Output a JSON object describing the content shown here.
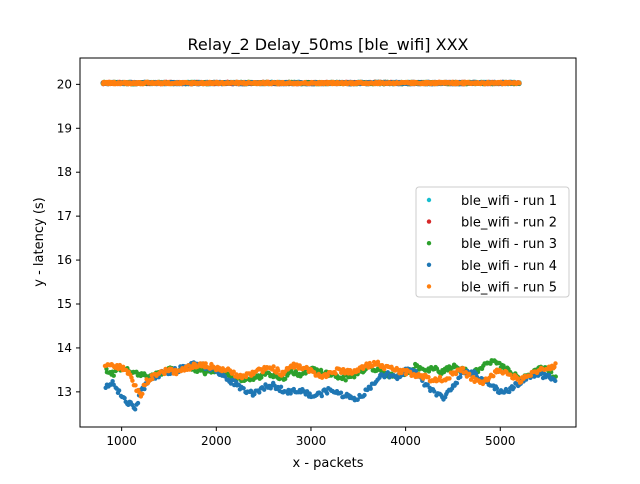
{
  "chart_data": {
    "type": "scatter",
    "title": "Relay_2 Delay_50ms [ble_wifi] XXX",
    "xlabel": "x - packets",
    "ylabel": "y - latency (s)",
    "xlim": [
      560,
      5800
    ],
    "ylim": [
      12.2,
      20.6
    ],
    "xticks": [
      1000,
      2000,
      3000,
      4000,
      5000
    ],
    "yticks": [
      13,
      14,
      15,
      16,
      17,
      18,
      19,
      20
    ],
    "grid": false,
    "legend_position": "center-right",
    "series": [
      {
        "name": "ble_wifi - run 1",
        "color": "#17becf",
        "x": [
          800,
          1200,
          1600,
          2000,
          2400,
          2800,
          3200,
          3600,
          4000,
          4400,
          4800,
          5200
        ],
        "y": [
          20.02,
          20.03,
          20.02,
          20.04,
          20.02,
          20.03,
          20.02,
          20.03,
          20.02,
          20.03,
          20.02,
          20.03
        ]
      },
      {
        "name": "ble_wifi - run 2",
        "color": "#d62728",
        "x": [
          810,
          1210,
          1610,
          2010,
          2410,
          2810,
          3210,
          3610,
          4010,
          4410,
          4810,
          5190
        ],
        "y": [
          20.03,
          20.02,
          20.04,
          20.02,
          20.03,
          20.02,
          20.04,
          20.02,
          20.03,
          20.02,
          20.04,
          20.02
        ]
      },
      {
        "name": "ble_wifi - run 3",
        "color": "#2ca02c",
        "x": [
          830,
          900,
          1000,
          1100,
          1200,
          1300,
          1400,
          1500,
          1600,
          1700,
          1800,
          1900,
          2000,
          2100,
          2200,
          2300,
          2400,
          2500,
          2600,
          2700,
          2800,
          2900,
          3000,
          3100,
          3200,
          3300,
          3400,
          3500,
          3600,
          3700,
          3800,
          3900,
          4000,
          4100,
          4200,
          4300,
          4400,
          4500,
          4600,
          4700,
          4800,
          4900,
          5000,
          5100,
          5200,
          5300,
          5400,
          5500,
          5580
        ],
        "y": [
          13.5,
          13.4,
          13.55,
          13.45,
          13.4,
          13.35,
          13.4,
          13.5,
          13.45,
          13.55,
          13.5,
          13.45,
          13.5,
          13.4,
          13.3,
          13.25,
          13.3,
          13.4,
          13.35,
          13.3,
          13.45,
          13.4,
          13.5,
          13.45,
          13.4,
          13.35,
          13.3,
          13.45,
          13.55,
          13.5,
          13.4,
          13.35,
          13.45,
          13.6,
          13.5,
          13.55,
          13.45,
          13.6,
          13.5,
          13.4,
          13.55,
          13.7,
          13.6,
          13.45,
          13.3,
          13.35,
          13.5,
          13.55,
          13.3
        ]
      },
      {
        "name": "ble_wifi - run 4",
        "color": "#1f77b4",
        "x": [
          830,
          900,
          1000,
          1050,
          1100,
          1150,
          1200,
          1300,
          1400,
          1500,
          1600,
          1700,
          1800,
          1900,
          2000,
          2100,
          2200,
          2300,
          2400,
          2500,
          2600,
          2700,
          2800,
          2900,
          3000,
          3100,
          3200,
          3300,
          3400,
          3500,
          3600,
          3700,
          3800,
          3900,
          4000,
          4100,
          4200,
          4300,
          4400,
          4500,
          4600,
          4700,
          4800,
          4900,
          5000,
          5100,
          5200,
          5300,
          5400,
          5500,
          5580
        ],
        "y": [
          13.1,
          13.2,
          12.9,
          12.75,
          12.7,
          12.6,
          13.0,
          13.3,
          13.4,
          13.45,
          13.5,
          13.6,
          13.65,
          13.55,
          13.5,
          13.3,
          13.2,
          13.0,
          12.95,
          13.1,
          13.15,
          13.05,
          13.0,
          13.05,
          12.9,
          12.95,
          13.05,
          12.95,
          12.9,
          12.85,
          13.05,
          13.3,
          13.4,
          13.3,
          13.5,
          13.45,
          13.2,
          13.0,
          12.85,
          13.15,
          13.4,
          13.45,
          13.3,
          13.15,
          13.0,
          13.05,
          13.2,
          13.35,
          13.4,
          13.35,
          13.3
        ]
      },
      {
        "name": "ble_wifi - run 5",
        "color": "#ff7f0e",
        "x": [
          820,
          900,
          1000,
          1080,
          1150,
          1200,
          1250,
          1300,
          1400,
          1500,
          1600,
          1700,
          1800,
          1900,
          2000,
          2100,
          2200,
          2300,
          2400,
          2500,
          2600,
          2700,
          2800,
          2900,
          3000,
          3100,
          3200,
          3300,
          3400,
          3500,
          3600,
          3700,
          3800,
          3900,
          4000,
          4100,
          4200,
          4300,
          4400,
          4500,
          4600,
          4700,
          4800,
          4900,
          5000,
          5100,
          5200,
          5300,
          5400,
          5500,
          5580
        ],
        "y": [
          13.65,
          13.6,
          13.55,
          13.4,
          13.1,
          12.9,
          13.2,
          13.3,
          13.4,
          13.5,
          13.45,
          13.55,
          13.6,
          13.6,
          13.55,
          13.5,
          13.4,
          13.35,
          13.45,
          13.5,
          13.55,
          13.4,
          13.6,
          13.55,
          13.5,
          13.35,
          13.4,
          13.5,
          13.45,
          13.5,
          13.6,
          13.65,
          13.55,
          13.5,
          13.45,
          13.4,
          13.35,
          13.25,
          13.3,
          13.4,
          13.5,
          13.3,
          13.2,
          13.35,
          13.5,
          13.4,
          13.25,
          13.35,
          13.5,
          13.55,
          13.6
        ]
      }
    ],
    "upper_band": {
      "x_range": [
        800,
        5200
      ],
      "y_center": 20.03,
      "y_spread": 0.05,
      "series_order": [
        "ble_wifi - run 1",
        "ble_wifi - run 2",
        "ble_wifi - run 3",
        "ble_wifi - run 4",
        "ble_wifi - run 5"
      ]
    }
  }
}
